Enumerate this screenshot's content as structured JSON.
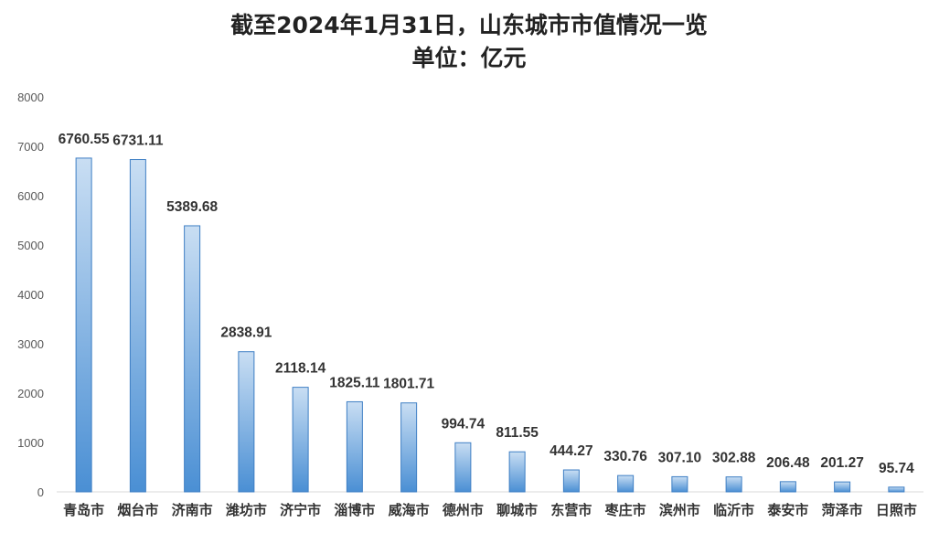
{
  "chart_data": {
    "type": "bar",
    "title": "截至2024年1月31日，山东城市市值情况一览",
    "subtitle": "单位：亿元",
    "xlabel": "",
    "ylabel": "",
    "ylim": [
      0,
      8000
    ],
    "yticks": [
      0,
      1000,
      2000,
      3000,
      4000,
      5000,
      6000,
      7000,
      8000
    ],
    "grid": false,
    "legend": "none",
    "categories": [
      "青岛市",
      "烟台市",
      "济南市",
      "潍坊市",
      "济宁市",
      "淄博市",
      "威海市",
      "德州市",
      "聊城市",
      "东营市",
      "枣庄市",
      "滨州市",
      "临沂市",
      "泰安市",
      "菏泽市",
      "日照市"
    ],
    "values": [
      6760.55,
      6731.11,
      5389.68,
      2838.91,
      2118.14,
      1825.11,
      1801.71,
      994.74,
      811.55,
      444.27,
      330.76,
      307.1,
      302.88,
      206.48,
      201.27,
      95.74
    ],
    "data_labels": [
      "6760.55",
      "6731.11",
      "5389.68",
      "2838.91",
      "2118.14",
      "1825.11",
      "1801.71",
      "994.74",
      "811.55",
      "444.27",
      "330.76",
      "307.10",
      "302.88",
      "206.48",
      "201.27",
      "95.74"
    ],
    "colors": {
      "bar_top": "#c9def3",
      "bar_bottom": "#4a8fd4",
      "bar_stroke": "#3f7fc4",
      "axis": "#d9d9d9"
    }
  }
}
